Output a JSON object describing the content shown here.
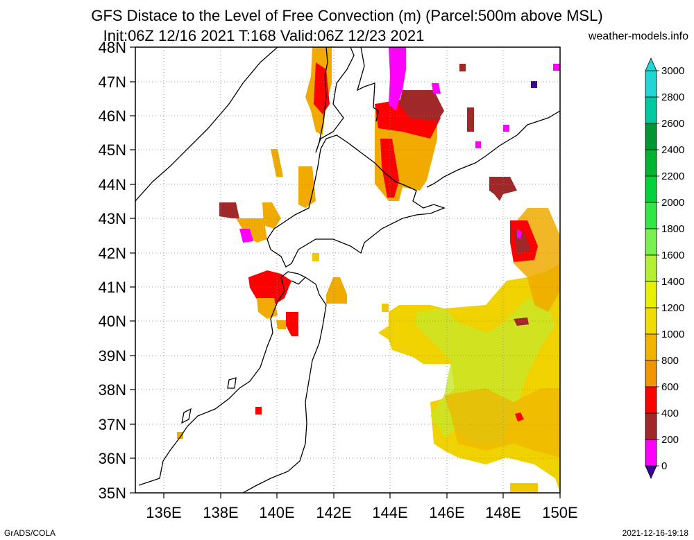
{
  "header": {
    "title_line1": "GFS Distace to the Level of Free Convection (m) (Parcel:500m above MSL)",
    "title_line2": "Init:06Z 12/16 2021 T:168 Valid:06Z 12/23 2021",
    "site": "weather-models.info"
  },
  "map": {
    "lat_labels": [
      "48N",
      "47N",
      "46N",
      "45N",
      "44N",
      "43N",
      "42N",
      "41N",
      "40N",
      "39N",
      "38N",
      "37N",
      "36N",
      "35N"
    ],
    "lon_labels": [
      "136E",
      "138E",
      "140E",
      "142E",
      "144E",
      "146E",
      "148E",
      "150E"
    ],
    "projection": "lat-lon",
    "extent": {
      "lon": [
        135,
        150
      ],
      "lat": [
        35,
        48
      ]
    },
    "grid": "dotted"
  },
  "colorbar": {
    "labels": [
      "3000",
      "2800",
      "2600",
      "2400",
      "2200",
      "2000",
      "1800",
      "1600",
      "1400",
      "1200",
      "1000",
      "800",
      "600",
      "400",
      "200",
      "0"
    ],
    "colors": [
      "#22d6d6",
      "#00c8a0",
      "#009632",
      "#00b432",
      "#00d23c",
      "#32e646",
      "#78f050",
      "#b4f032",
      "#e6f000",
      "#f0dc00",
      "#f0b400",
      "#f09600",
      "#ff0000",
      "#a02828",
      "#ff00ff",
      "#3c0096"
    ]
  },
  "footer": {
    "left": "GrADS/COLA",
    "right": "2021-12-16-19:18"
  }
}
